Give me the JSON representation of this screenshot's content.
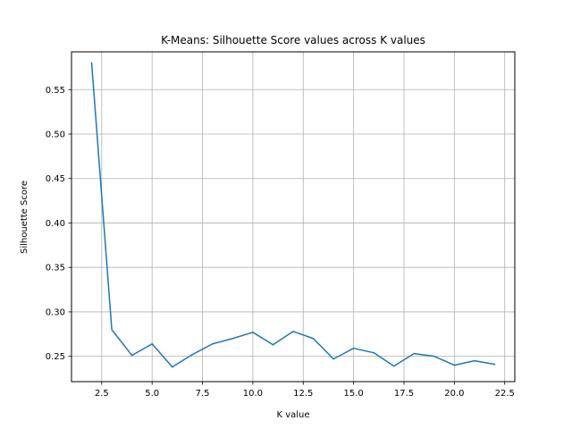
{
  "chart_data": {
    "type": "line",
    "title": "K-Means: Silhouette Score values across K values",
    "xlabel": "K value",
    "ylabel": "Silhouette Score",
    "xlim": [
      1.0,
      23.0
    ],
    "ylim": [
      0.2215,
      0.5925
    ],
    "xticks": [
      2.5,
      5.0,
      7.5,
      10.0,
      12.5,
      15.0,
      17.5,
      20.0,
      22.5
    ],
    "xtick_labels": [
      "2.5",
      "5.0",
      "7.5",
      "10.0",
      "12.5",
      "15.0",
      "17.5",
      "20.0",
      "22.5"
    ],
    "yticks": [
      0.25,
      0.3,
      0.35,
      0.4,
      0.45,
      0.5,
      0.55
    ],
    "ytick_labels": [
      "0.25",
      "0.30",
      "0.35",
      "0.40",
      "0.45",
      "0.50",
      "0.55"
    ],
    "grid": true,
    "line_color": "#1f77b4",
    "series": [
      {
        "x": [
          2,
          3,
          4,
          5,
          6,
          7,
          8,
          9,
          10,
          11,
          12,
          13,
          14,
          15,
          16,
          17,
          18,
          19,
          20,
          21,
          22
        ],
        "values": [
          0.58,
          0.28,
          0.251,
          0.264,
          0.238,
          0.252,
          0.264,
          0.27,
          0.277,
          0.263,
          0.278,
          0.27,
          0.247,
          0.259,
          0.254,
          0.239,
          0.253,
          0.25,
          0.24,
          0.245,
          0.241
        ]
      }
    ]
  }
}
